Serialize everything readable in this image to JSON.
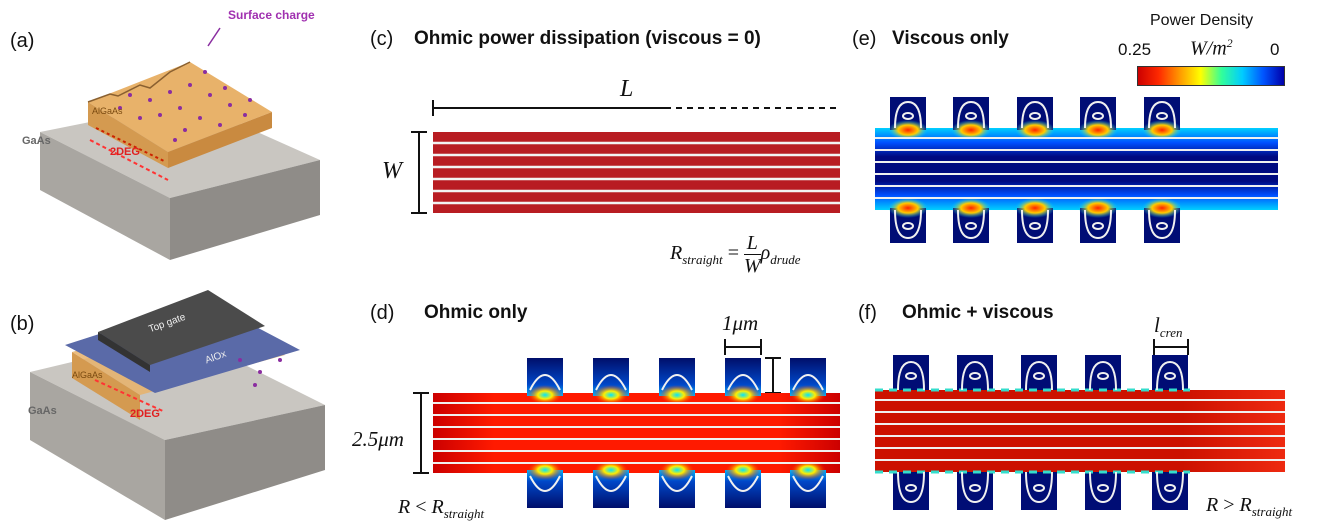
{
  "panels": {
    "a": {
      "letter": "(a)",
      "surface_charge": "Surface charge",
      "algaas": "AlGaAs",
      "gaas": "GaAs",
      "twodeg": "2DEG"
    },
    "b": {
      "letter": "(b)",
      "top_gate": "Top gate",
      "alox": "AlOx",
      "algaas": "AlGaAs",
      "gaas": "GaAs",
      "twodeg": "2DEG"
    },
    "c": {
      "letter": "(c)",
      "title": "Ohmic power dissipation (viscous = 0)",
      "length_label": "L",
      "width_label": "W",
      "formula": {
        "lhs": "R",
        "lhs_sub": "straight",
        "eq": "=",
        "num": "L",
        "den": "W",
        "rho": "ρ",
        "rho_sub": "drude"
      }
    },
    "d": {
      "letter": "(d)",
      "title": "Ohmic only",
      "scale_label": "1μm",
      "width_label": "2.5μm",
      "relation": {
        "r": "R",
        "op": "<",
        "r2": "R",
        "sub": "straight"
      }
    },
    "e": {
      "letter": "(e)",
      "title": "Viscous only"
    },
    "f": {
      "letter": "(f)",
      "title": "Ohmic + viscous",
      "crenel_label": "l",
      "crenel_sub": "cren",
      "relation": {
        "r": "R",
        "op": ">",
        "r2": "R",
        "sub": "straight"
      }
    }
  },
  "colorbar": {
    "title": "Power Density",
    "max": "0.25",
    "min": "0",
    "units": "W/m",
    "units_sup": "2",
    "colors": [
      "#cc0000",
      "#ff2a00",
      "#ff9900",
      "#ffff00",
      "#33ff99",
      "#00ccff",
      "#0055ff",
      "#0000aa"
    ]
  }
}
